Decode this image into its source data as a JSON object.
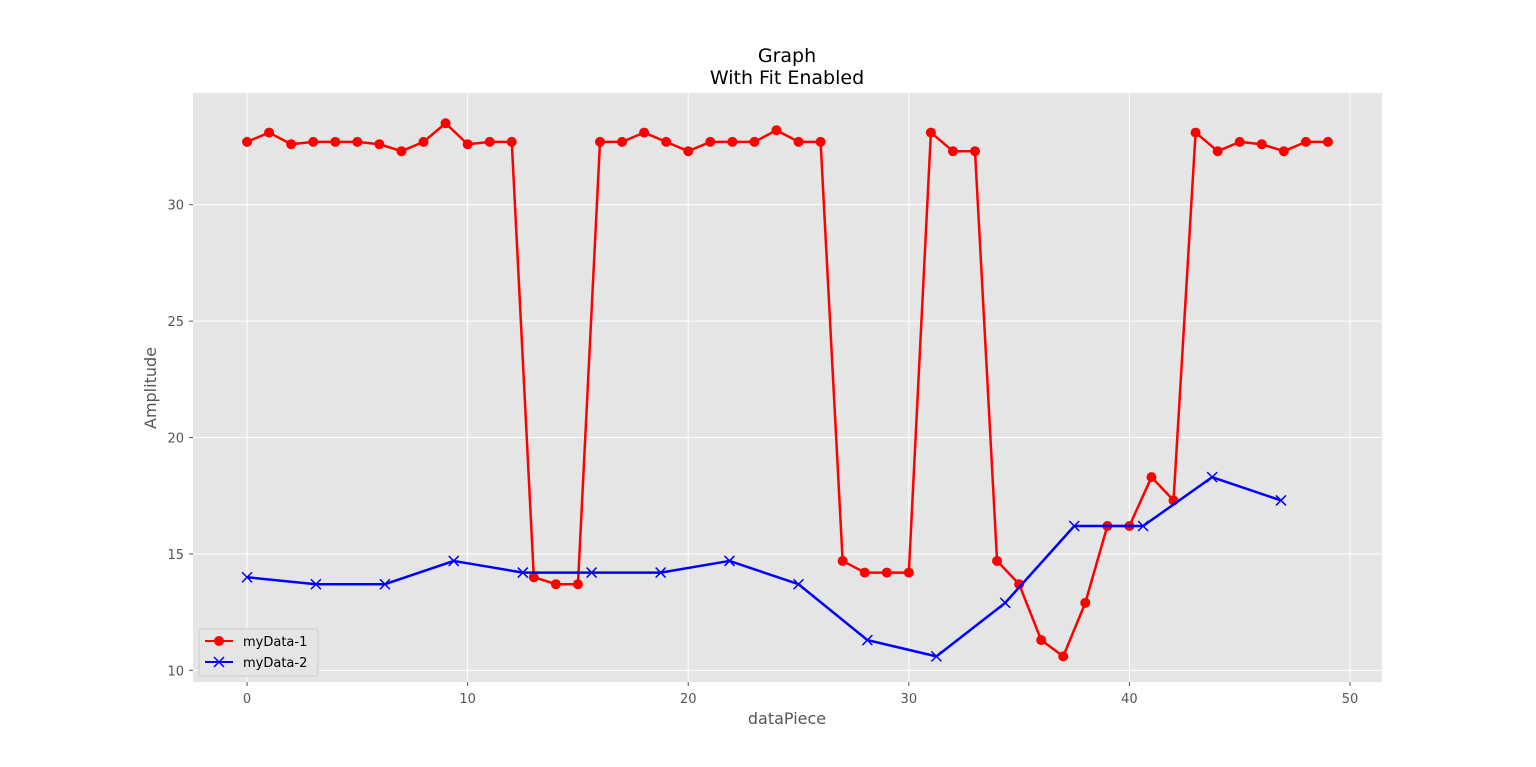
{
  "chart_data": {
    "type": "line",
    "title": "Graph",
    "subtitle": "With Fit Enabled",
    "xlabel": "dataPiece",
    "ylabel": "Amplitude",
    "xlim": [
      -2.45,
      51.45
    ],
    "ylim": [
      9.5,
      34.8
    ],
    "xticks": [
      0,
      10,
      20,
      30,
      40,
      50
    ],
    "yticks": [
      10,
      15,
      20,
      25,
      30
    ],
    "grid": true,
    "legend_position": "lower-left",
    "colors": {
      "background": "#e5e5e5",
      "grid": "#ffffff",
      "tick": "#555555"
    },
    "series": [
      {
        "name": "myData-1",
        "color": "#ff0000",
        "marker": "circle",
        "x": [
          0,
          1,
          2,
          3,
          4,
          5,
          6,
          7,
          8,
          9,
          10,
          11,
          12,
          13,
          14,
          15,
          16,
          17,
          18,
          19,
          20,
          21,
          22,
          23,
          24,
          25,
          26,
          27,
          28,
          29,
          30,
          31,
          32,
          33,
          34,
          35,
          36,
          37,
          38,
          39,
          40,
          41,
          42,
          43,
          44,
          45,
          46,
          47,
          48,
          49
        ],
        "y": [
          32.7,
          33.1,
          32.6,
          32.7,
          32.7,
          32.7,
          32.6,
          32.3,
          32.7,
          33.5,
          32.6,
          32.7,
          32.7,
          14.0,
          13.7,
          13.7,
          32.7,
          32.7,
          33.1,
          32.7,
          32.3,
          32.7,
          32.7,
          32.7,
          33.2,
          32.7,
          32.7,
          14.7,
          14.2,
          14.2,
          14.2,
          33.1,
          32.3,
          32.3,
          14.7,
          13.7,
          11.3,
          10.6,
          12.9,
          16.2,
          16.2,
          18.3,
          17.3,
          33.1,
          32.3,
          32.7,
          32.6,
          32.3,
          32.7,
          32.7
        ]
      },
      {
        "name": "myData-2",
        "color": "#0000ff",
        "marker": "x",
        "x": [
          0,
          3.12,
          6.25,
          9.37,
          12.5,
          15.62,
          18.75,
          21.87,
          25,
          28.12,
          31.25,
          34.37,
          37.5,
          40.62,
          43.75,
          46.87
        ],
        "y": [
          14.0,
          13.7,
          13.7,
          14.7,
          14.2,
          14.2,
          14.2,
          14.7,
          13.7,
          11.3,
          10.6,
          12.9,
          16.2,
          16.2,
          18.3,
          17.3
        ]
      }
    ]
  }
}
